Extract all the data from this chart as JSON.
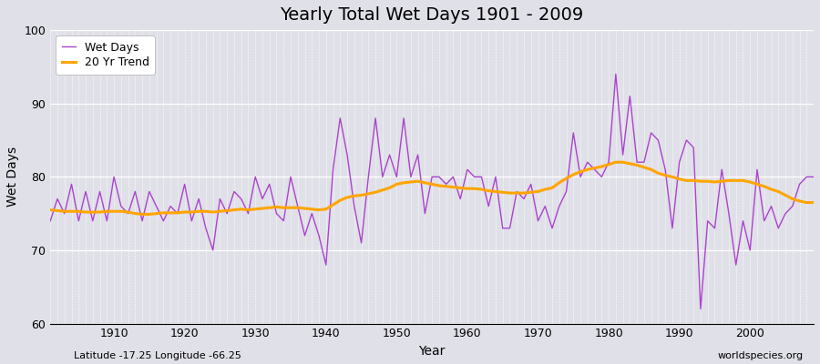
{
  "title": "Yearly Total Wet Days 1901 - 2009",
  "xlabel": "Year",
  "ylabel": "Wet Days",
  "subtitle": "Latitude -17.25 Longitude -66.25",
  "watermark": "worldspecies.org",
  "ylim": [
    60,
    100
  ],
  "xlim": [
    1901,
    2009
  ],
  "line_color": "#AA44CC",
  "trend_color": "#FFA500",
  "bg_color": "#E0E0E8",
  "legend_wet": "Wet Days",
  "legend_trend": "20 Yr Trend",
  "years": [
    1901,
    1902,
    1903,
    1904,
    1905,
    1906,
    1907,
    1908,
    1909,
    1910,
    1911,
    1912,
    1913,
    1914,
    1915,
    1916,
    1917,
    1918,
    1919,
    1920,
    1921,
    1922,
    1923,
    1924,
    1925,
    1926,
    1927,
    1928,
    1929,
    1930,
    1931,
    1932,
    1933,
    1934,
    1935,
    1936,
    1937,
    1938,
    1939,
    1940,
    1941,
    1942,
    1943,
    1944,
    1945,
    1946,
    1947,
    1948,
    1949,
    1950,
    1951,
    1952,
    1953,
    1954,
    1955,
    1956,
    1957,
    1958,
    1959,
    1960,
    1961,
    1962,
    1963,
    1964,
    1965,
    1966,
    1967,
    1968,
    1969,
    1970,
    1971,
    1972,
    1973,
    1974,
    1975,
    1976,
    1977,
    1978,
    1979,
    1980,
    1981,
    1982,
    1983,
    1984,
    1985,
    1986,
    1987,
    1988,
    1989,
    1990,
    1991,
    1992,
    1993,
    1994,
    1995,
    1996,
    1997,
    1998,
    1999,
    2000,
    2001,
    2002,
    2003,
    2004,
    2005,
    2006,
    2007,
    2008,
    2009
  ],
  "wet_days": [
    74,
    77,
    75,
    79,
    74,
    78,
    74,
    78,
    74,
    80,
    76,
    75,
    78,
    74,
    78,
    76,
    74,
    76,
    75,
    79,
    74,
    77,
    73,
    70,
    77,
    75,
    78,
    77,
    75,
    80,
    77,
    79,
    75,
    74,
    80,
    76,
    72,
    75,
    72,
    68,
    81,
    88,
    83,
    76,
    71,
    80,
    88,
    80,
    83,
    80,
    88,
    80,
    83,
    75,
    80,
    80,
    79,
    80,
    77,
    81,
    80,
    80,
    76,
    80,
    73,
    73,
    78,
    77,
    79,
    74,
    76,
    73,
    76,
    78,
    86,
    80,
    82,
    81,
    80,
    82,
    94,
    83,
    91,
    82,
    82,
    86,
    85,
    81,
    73,
    82,
    85,
    84,
    62,
    74,
    73,
    81,
    75,
    68,
    74,
    70,
    81,
    74,
    76,
    73,
    75,
    76,
    79,
    80,
    80
  ],
  "trend_vals": [
    75.5,
    75.4,
    75.3,
    75.3,
    75.3,
    75.2,
    75.2,
    75.2,
    75.3,
    75.3,
    75.3,
    75.2,
    75.0,
    74.9,
    74.9,
    75.0,
    75.1,
    75.1,
    75.1,
    75.2,
    75.2,
    75.3,
    75.3,
    75.2,
    75.3,
    75.4,
    75.5,
    75.6,
    75.5,
    75.6,
    75.7,
    75.8,
    75.9,
    75.8,
    75.8,
    75.8,
    75.7,
    75.6,
    75.5,
    75.6,
    76.2,
    76.8,
    77.2,
    77.4,
    77.5,
    77.7,
    77.9,
    78.2,
    78.5,
    79.0,
    79.2,
    79.3,
    79.4,
    79.2,
    79.0,
    78.8,
    78.7,
    78.6,
    78.5,
    78.4,
    78.4,
    78.3,
    78.1,
    78.0,
    77.9,
    77.8,
    77.8,
    77.8,
    77.9,
    78.0,
    78.3,
    78.5,
    79.2,
    79.8,
    80.3,
    80.7,
    81.0,
    81.2,
    81.4,
    81.7,
    82.0,
    82.0,
    81.8,
    81.6,
    81.3,
    81.0,
    80.5,
    80.2,
    80.0,
    79.7,
    79.5,
    79.5,
    79.4,
    79.4,
    79.3,
    79.4,
    79.5,
    79.5,
    79.5,
    79.3,
    79.0,
    78.7,
    78.3,
    78.0,
    77.5,
    77.0,
    76.7,
    76.5,
    76.5
  ]
}
